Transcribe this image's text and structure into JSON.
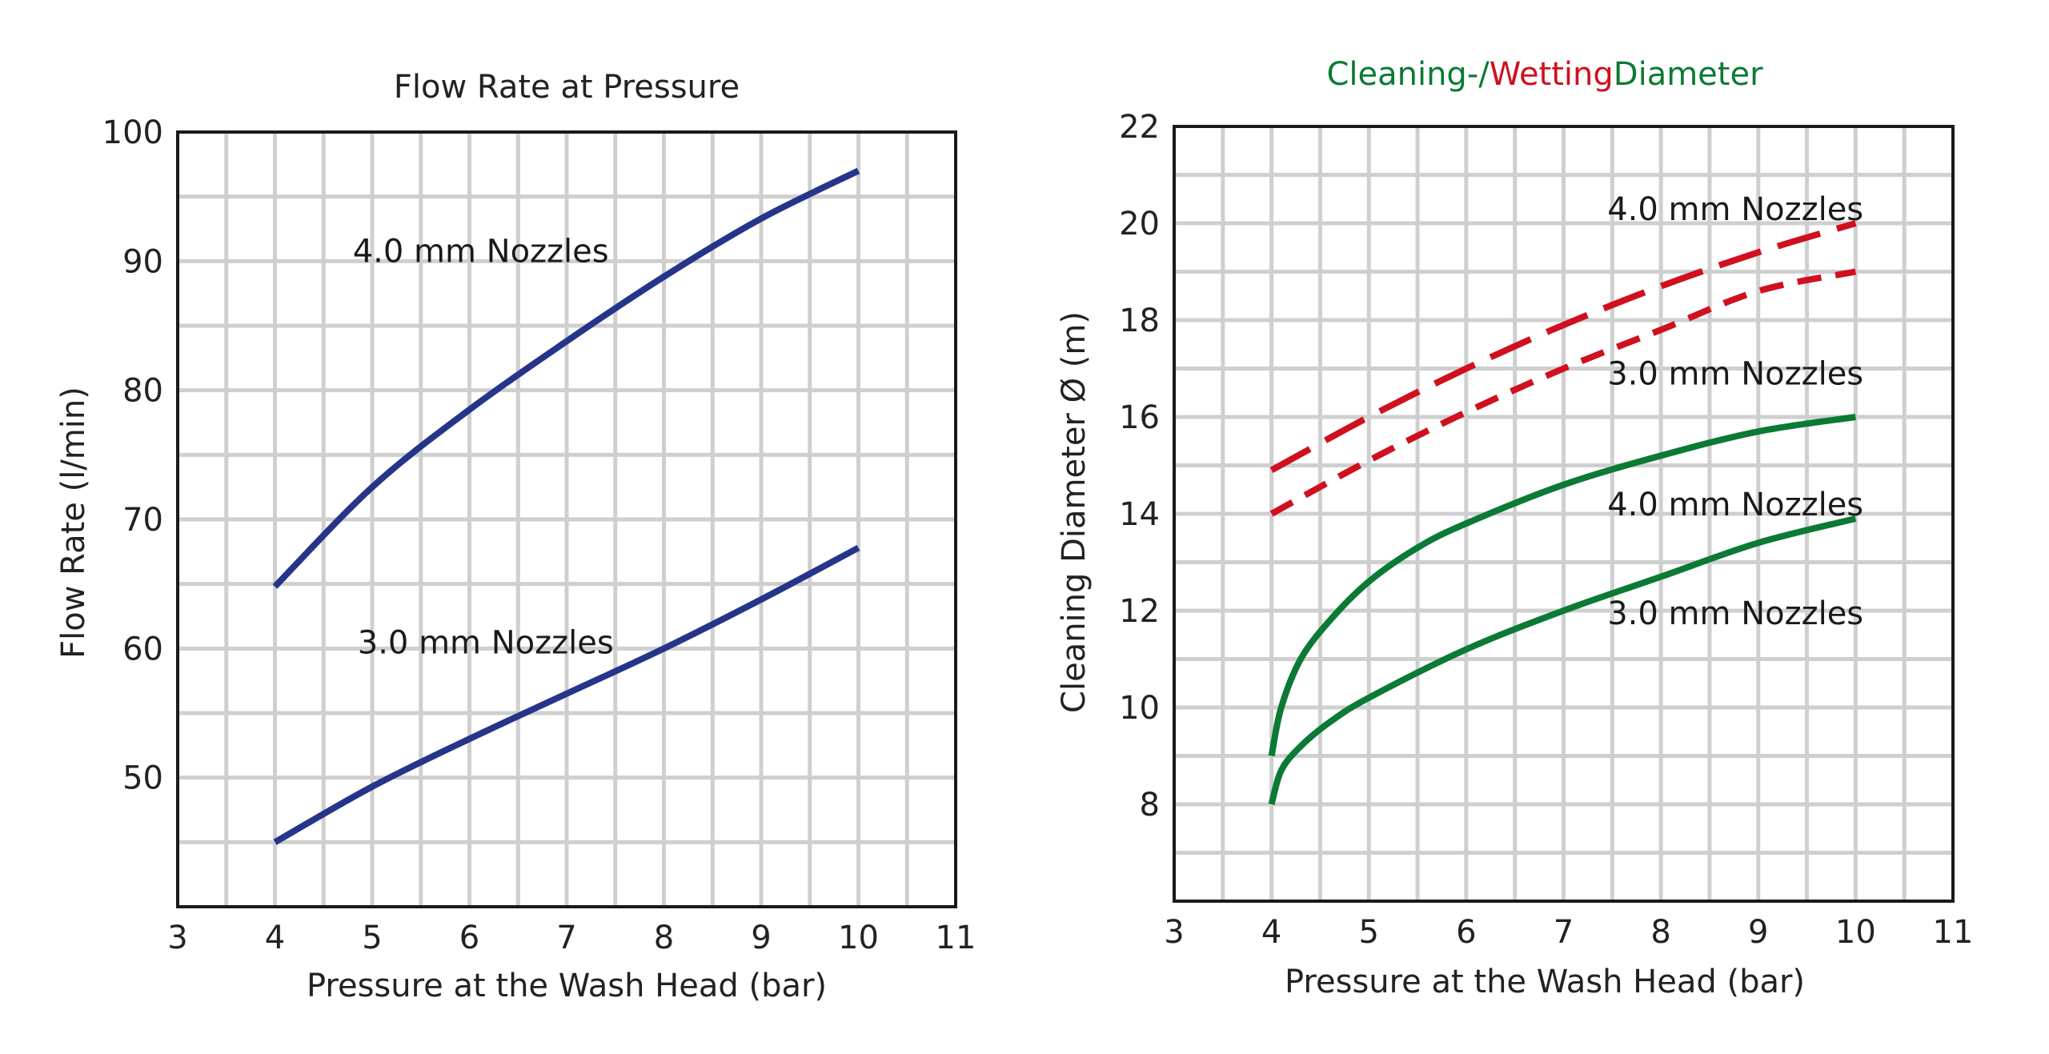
{
  "chart_data": [
    {
      "type": "line",
      "title": "Flow Rate at Pressure",
      "xlabel": "Pressure at the Wash Head (bar)",
      "ylabel": "Flow Rate (l/min)",
      "xlim": [
        3,
        11
      ],
      "ylim": [
        40,
        100
      ],
      "x_ticks": [
        3,
        4,
        5,
        6,
        7,
        8,
        9,
        10,
        11
      ],
      "y_ticks": [
        50,
        60,
        70,
        80,
        90,
        100
      ],
      "grid": true,
      "colors": {
        "line": "#25358a",
        "grid": "#cfcfcf",
        "frame": "#1a1a1a"
      },
      "series": [
        {
          "name": "4.0 mm Nozzles",
          "style": "solid",
          "points": [
            [
              4,
              64.8
            ],
            [
              5,
              72.5
            ],
            [
              6,
              78.5
            ],
            [
              7,
              83.8
            ],
            [
              8,
              88.8
            ],
            [
              9,
              93.3
            ],
            [
              10,
              97.0
            ]
          ]
        },
        {
          "name": "3.0 mm Nozzles",
          "style": "solid",
          "points": [
            [
              4,
              45.0
            ],
            [
              5,
              49.3
            ],
            [
              6,
              53.0
            ],
            [
              7,
              56.5
            ],
            [
              8,
              60.0
            ],
            [
              9,
              63.8
            ],
            [
              10,
              67.8
            ]
          ]
        }
      ],
      "annotations": [
        {
          "text": "4.0 mm Nozzles",
          "at": [
            4.8,
            90.8
          ]
        },
        {
          "text": "3.0 mm Nozzles",
          "at": [
            4.85,
            60.5
          ]
        }
      ]
    },
    {
      "type": "line",
      "title": "",
      "title_parts": [
        {
          "text": "Cleaning-/",
          "color": "#0b7a34"
        },
        {
          "text": "Wetting",
          "color": "#d0101e"
        },
        {
          "text": "Diameter",
          "color": "#0b7a34"
        }
      ],
      "xlabel": "Pressure at the Wash Head (bar)",
      "ylabel": "Cleaning Diameter Ø (m)",
      "xlim": [
        3,
        11
      ],
      "ylim": [
        6,
        22
      ],
      "x_ticks": [
        3,
        4,
        5,
        6,
        7,
        8,
        9,
        10,
        11
      ],
      "y_ticks": [
        8,
        10,
        12,
        14,
        16,
        18,
        20,
        22
      ],
      "grid": true,
      "colors": {
        "green": "#0b7a34",
        "red": "#d0101e",
        "grid": "#cfcfcf",
        "frame": "#1a1a1a"
      },
      "series": [
        {
          "name": "4.0 mm Nozzles",
          "style": "long-dash",
          "color": "#d0101e",
          "points": [
            [
              4,
              14.9
            ],
            [
              5,
              16.0
            ],
            [
              6,
              17.0
            ],
            [
              7,
              17.9
            ],
            [
              8,
              18.7
            ],
            [
              9,
              19.4
            ],
            [
              10,
              20.0
            ]
          ]
        },
        {
          "name": "3.0 mm Nozzles",
          "style": "short-dash",
          "color": "#d0101e",
          "points": [
            [
              4,
              14.0
            ],
            [
              5,
              15.1
            ],
            [
              6,
              16.1
            ],
            [
              7,
              17.0
            ],
            [
              8,
              17.8
            ],
            [
              9,
              18.6
            ],
            [
              10,
              19.0
            ]
          ]
        },
        {
          "name": "4.0 mm Nozzles",
          "style": "solid",
          "color": "#0b7a34",
          "points": [
            [
              4,
              9.0
            ],
            [
              4.1,
              10.0
            ],
            [
              4.3,
              11.0
            ],
            [
              4.6,
              11.8
            ],
            [
              5,
              12.6
            ],
            [
              5.5,
              13.3
            ],
            [
              6,
              13.8
            ],
            [
              7,
              14.6
            ],
            [
              8,
              15.2
            ],
            [
              9,
              15.7
            ],
            [
              10,
              16.0
            ]
          ]
        },
        {
          "name": "3.0 mm Nozzles",
          "style": "solid",
          "color": "#0b7a34",
          "points": [
            [
              4,
              8.0
            ],
            [
              4.1,
              8.7
            ],
            [
              4.3,
              9.2
            ],
            [
              4.6,
              9.7
            ],
            [
              5,
              10.2
            ],
            [
              6,
              11.2
            ],
            [
              7,
              12.0
            ],
            [
              8,
              12.7
            ],
            [
              9,
              13.4
            ],
            [
              10,
              13.9
            ]
          ]
        }
      ],
      "annotations": [
        {
          "text": "4.0 mm Nozzles",
          "at": [
            7.45,
            20.3
          ]
        },
        {
          "text": "3.0 mm Nozzles",
          "at": [
            7.45,
            16.9
          ]
        },
        {
          "text": "4.0 mm Nozzles",
          "at": [
            7.45,
            14.2
          ]
        },
        {
          "text": "3.0 mm Nozzles",
          "at": [
            7.45,
            11.95
          ]
        }
      ]
    }
  ]
}
